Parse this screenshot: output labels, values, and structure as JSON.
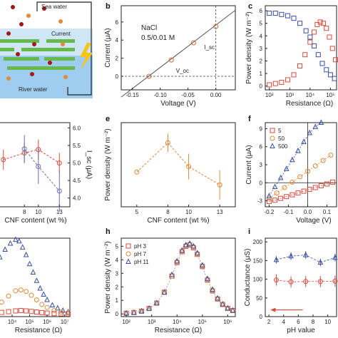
{
  "figure": {
    "panel_letters": [
      "b",
      "c",
      "e",
      "f",
      "h",
      "i"
    ]
  },
  "schematic": {
    "top_label": "Sea water",
    "middle_label": "Current",
    "bottom_label": "River water",
    "colors": {
      "sea": "#cfe6f7",
      "river": "#9fcdf0",
      "membrane": "#66b94a",
      "ion_red": "#a31818",
      "ion_orange": "#e08a3a",
      "bolt": "#f5c518"
    }
  },
  "chart_data": [
    {
      "id": "b",
      "type": "line",
      "xlabel": "Voltage (V)",
      "ylabel": "Current (μA)",
      "x_ticks": [
        "-0.15",
        "-0.10",
        "-0.05",
        "0.00"
      ],
      "y_ticks": [
        "0",
        "2",
        "4",
        "6"
      ],
      "xlim": [
        -0.17,
        0.035
      ],
      "ylim": [
        -1.5,
        7.8
      ],
      "points_x": [
        -0.12,
        -0.08,
        -0.04,
        0.0
      ],
      "points_y": [
        0.0,
        1.8,
        3.7,
        5.5
      ],
      "fit": [
        [
          -0.17,
          -2.3
        ],
        [
          0.035,
          7.3
        ]
      ],
      "annotation_lines": [
        "NaCl",
        "0.5/0.01 M"
      ],
      "isc_label": "I_sc",
      "voc_label": "V_oc",
      "colors": {
        "marker": "#c96a3f",
        "fit": "#555555"
      }
    },
    {
      "id": "c",
      "type": "line",
      "xlabel": "Resistance (Ω)",
      "ylabel": "Power density (W m⁻²)",
      "x_ticks": [
        "10²",
        "10³",
        "10⁴",
        "10⁵"
      ],
      "y_ticks": [
        "0",
        "1",
        "2",
        "3",
        "4",
        "5",
        "6"
      ],
      "xscale": "log",
      "xlim_log10": [
        1.8,
        5.3
      ],
      "ylim": [
        -0.3,
        6.4
      ],
      "series": [
        {
          "marker": "square",
          "color": "#d94a3d",
          "x_log10": [
            2.0,
            2.3,
            2.6,
            2.9,
            3.2,
            3.5,
            3.75,
            4.0,
            4.2,
            4.35,
            4.5,
            4.65,
            4.8,
            4.95,
            5.1,
            5.25
          ],
          "y": [
            0.1,
            0.2,
            0.3,
            0.5,
            0.9,
            1.6,
            2.5,
            3.5,
            4.3,
            4.9,
            5.1,
            5.0,
            4.6,
            3.9,
            3.0,
            2.1
          ]
        },
        {
          "marker": "square",
          "color": "#3a4fa0",
          "x_log10": [
            2.0,
            2.3,
            2.6,
            2.9,
            3.2,
            3.5,
            3.8,
            4.0,
            4.2,
            4.4,
            4.6,
            4.8,
            5.0,
            5.2
          ],
          "y": [
            5.8,
            5.8,
            5.7,
            5.6,
            5.4,
            5.0,
            4.4,
            3.9,
            3.2,
            2.5,
            1.8,
            1.3,
            0.9,
            0.6
          ]
        }
      ]
    },
    {
      "id": "d",
      "type": "line",
      "xlabel": "CNF content (wt %)",
      "ylabel_right": "I_sc (μA)",
      "x_ticks": [
        "8",
        "10",
        "13"
      ],
      "y_ticks_right": [
        "4.0",
        "4.5",
        "5.0",
        "5.5",
        "6.0"
      ],
      "xlim": [
        3.5,
        14.5
      ],
      "ylim_right": [
        3.75,
        6.15
      ],
      "ylim_left": [
        3.5,
        6.0
      ],
      "series": [
        {
          "axis": "left",
          "color": "#d94a3d",
          "x": [
            5,
            8,
            10,
            13
          ],
          "y": [
            4.9,
            5.1,
            5.2,
            4.8
          ],
          "err": [
            0.3,
            0.3,
            0.3,
            0.3
          ]
        },
        {
          "axis": "right",
          "color": "#6a6fb8",
          "x": [
            8,
            10,
            13
          ],
          "y": [
            5.4,
            4.9,
            4.2
          ],
          "err": [
            0.4,
            0.5,
            0.6
          ]
        }
      ]
    },
    {
      "id": "e",
      "type": "line",
      "xlabel": "CNF content (wt %)",
      "ylabel": "Power density (W m⁻²)",
      "x_ticks": [
        "5",
        "8",
        "10",
        "13"
      ],
      "xlim": [
        3.5,
        14.5
      ],
      "ylim": [
        3.5,
        5.8
      ],
      "x": [
        5,
        8,
        10,
        13
      ],
      "y": [
        4.45,
        5.25,
        4.6,
        4.1
      ],
      "err": [
        0.0,
        0.25,
        0.35,
        0.4
      ],
      "color": "#e08a3a"
    },
    {
      "id": "f",
      "type": "line",
      "xlabel": "Voltage (V)",
      "ylabel": "Current (μA)",
      "x_ticks": [
        "-0.2",
        "-0.1",
        "0.0",
        "0.1"
      ],
      "y_ticks": [
        "-3",
        "0",
        "3",
        "6",
        "9"
      ],
      "xlim": [
        -0.22,
        0.15
      ],
      "ylim": [
        -4,
        10
      ],
      "legend": [
        "5",
        "50",
        "500"
      ],
      "series": [
        {
          "name": "5",
          "marker": "square",
          "color": "#d94a3d",
          "x": [
            -0.2,
            -0.17,
            -0.14,
            -0.11,
            -0.08,
            -0.05,
            -0.02,
            0.01,
            0.04,
            0.07,
            0.1,
            0.13
          ],
          "y": [
            -3.1,
            -2.9,
            -2.6,
            -2.3,
            -2.0,
            -1.7,
            -1.4,
            -1.1,
            -0.8,
            -0.5,
            -0.2,
            0.1
          ]
        },
        {
          "name": "50",
          "marker": "circle",
          "color": "#e08a3a",
          "x": [
            -0.2,
            -0.16,
            -0.12,
            -0.08,
            -0.04,
            0.0,
            0.04,
            0.08,
            0.12
          ],
          "y": [
            -2.6,
            -1.7,
            -0.8,
            0.1,
            1.0,
            1.9,
            2.8,
            3.7,
            4.6
          ]
        },
        {
          "name": "500",
          "marker": "triangle",
          "color": "#3a4fa0",
          "x": [
            -0.2,
            -0.17,
            -0.14,
            -0.11,
            -0.08,
            -0.05,
            -0.02,
            0.01,
            0.04,
            0.07
          ],
          "y": [
            -2.2,
            -0.7,
            0.8,
            2.3,
            3.8,
            5.3,
            6.8,
            8.3,
            9.3,
            10.0
          ]
        }
      ]
    },
    {
      "id": "g",
      "type": "line",
      "xlabel": "Resistance (Ω)",
      "x_ticks": [
        "10⁴",
        "10⁵",
        "10⁶",
        "10⁷"
      ],
      "xscale": "log",
      "xlim_log10": [
        2.9,
        7.3
      ],
      "ylim": [
        -0.3,
        10
      ],
      "series": [
        {
          "marker": "triangle",
          "color": "#3a4fa0",
          "x_log10": [
            3.0,
            3.3,
            3.6,
            3.9,
            4.2,
            4.4,
            4.6,
            4.8,
            5.0,
            5.2,
            5.4,
            5.6,
            5.8,
            6.0,
            6.3,
            6.6,
            6.9,
            7.2
          ],
          "y": [
            6.5,
            7.5,
            8.5,
            9.3,
            9.8,
            9.6,
            8.8,
            7.8,
            6.6,
            5.5,
            4.4,
            3.4,
            2.6,
            1.9,
            1.2,
            0.8,
            0.5,
            0.3
          ]
        },
        {
          "marker": "circle",
          "color": "#e08a3a",
          "x_log10": [
            3.0,
            3.4,
            3.8,
            4.2,
            4.5,
            4.8,
            5.1,
            5.4,
            5.7,
            6.0,
            6.4,
            6.8,
            7.2
          ],
          "y": [
            1.0,
            1.6,
            2.4,
            3.1,
            3.2,
            3.0,
            2.5,
            1.9,
            1.3,
            0.9,
            0.5,
            0.3,
            0.2
          ]
        },
        {
          "marker": "square",
          "color": "#d94a3d",
          "x_log10": [
            3.0,
            3.4,
            3.8,
            4.2,
            4.5,
            4.8,
            5.1,
            5.4,
            5.7,
            6.0,
            6.4,
            6.8,
            7.2
          ],
          "y": [
            0.15,
            0.25,
            0.35,
            0.45,
            0.5,
            0.45,
            0.38,
            0.3,
            0.22,
            0.16,
            0.1,
            0.07,
            0.05
          ]
        }
      ]
    },
    {
      "id": "h",
      "type": "line",
      "xlabel": "Resistance (Ω)",
      "ylabel": "Power density (W m⁻²)",
      "x_ticks": [
        "10²",
        "10³",
        "10⁴",
        "10⁵",
        "10⁶"
      ],
      "y_ticks": [
        "0",
        "1",
        "2",
        "3",
        "4",
        "5"
      ],
      "xscale": "log",
      "xlim_log10": [
        1.8,
        6.3
      ],
      "ylim": [
        -0.2,
        5.6
      ],
      "legend": [
        "pH 3",
        "pH 7",
        "pH 11"
      ],
      "series": [
        {
          "name": "pH 3",
          "marker": "square",
          "color": "#d94a3d",
          "x_log10": [
            2.0,
            2.3,
            2.6,
            2.9,
            3.2,
            3.5,
            3.8,
            4.0,
            4.2,
            4.35,
            4.5,
            4.65,
            4.8,
            5.0,
            5.2,
            5.4,
            5.6,
            5.8,
            6.0,
            6.2
          ],
          "y": [
            0.05,
            0.1,
            0.2,
            0.4,
            0.8,
            1.6,
            2.8,
            3.8,
            4.6,
            5.0,
            5.1,
            4.9,
            4.4,
            3.5,
            2.5,
            1.7,
            1.1,
            0.7,
            0.4,
            0.25
          ]
        },
        {
          "name": "pH 7",
          "marker": "circle",
          "color": "#e08a3a",
          "x_log10": [
            2.0,
            2.3,
            2.6,
            2.9,
            3.2,
            3.5,
            3.8,
            4.0,
            4.2,
            4.35,
            4.5,
            4.65,
            4.8,
            5.0,
            5.2,
            5.4,
            5.6,
            5.8,
            6.0,
            6.2
          ],
          "y": [
            0.05,
            0.1,
            0.2,
            0.4,
            0.8,
            1.6,
            2.8,
            3.85,
            4.65,
            5.05,
            5.15,
            4.95,
            4.45,
            3.55,
            2.55,
            1.75,
            1.1,
            0.7,
            0.4,
            0.25
          ]
        },
        {
          "name": "pH 11",
          "marker": "triangle",
          "color": "#3a4fa0",
          "x_log10": [
            2.0,
            2.3,
            2.6,
            2.9,
            3.2,
            3.5,
            3.8,
            4.0,
            4.2,
            4.35,
            4.5,
            4.65,
            4.8,
            5.0,
            5.2,
            5.4,
            5.6,
            5.8,
            6.0,
            6.2
          ],
          "y": [
            0.05,
            0.1,
            0.2,
            0.4,
            0.8,
            1.6,
            2.9,
            3.9,
            4.7,
            5.1,
            5.2,
            5.0,
            4.5,
            3.6,
            2.6,
            1.8,
            1.15,
            0.72,
            0.42,
            0.26
          ]
        }
      ]
    },
    {
      "id": "i",
      "type": "line",
      "xlabel": "pH value",
      "ylabel": "Conductance (μS)",
      "x_ticks": [
        "2",
        "4",
        "6",
        "8",
        "10"
      ],
      "y_ticks": [
        "0",
        "50",
        "100",
        "150",
        "200"
      ],
      "xlim": [
        1.5,
        11.2
      ],
      "ylim": [
        0,
        210
      ],
      "series": [
        {
          "marker": "triangle",
          "color": "#3a4fa0",
          "x": [
            3,
            5,
            7,
            9,
            11
          ],
          "y": [
            152,
            162,
            165,
            145,
            158
          ],
          "err": [
            10,
            10,
            10,
            10,
            10
          ]
        },
        {
          "marker": "circle",
          "color": "#d94a3d",
          "x": [
            3,
            5,
            7,
            9,
            11
          ],
          "y": [
            98,
            93,
            94,
            94,
            95
          ],
          "err": [
            15,
            15,
            15,
            15,
            15
          ]
        }
      ],
      "arrow_color": "#d94a3d"
    }
  ]
}
